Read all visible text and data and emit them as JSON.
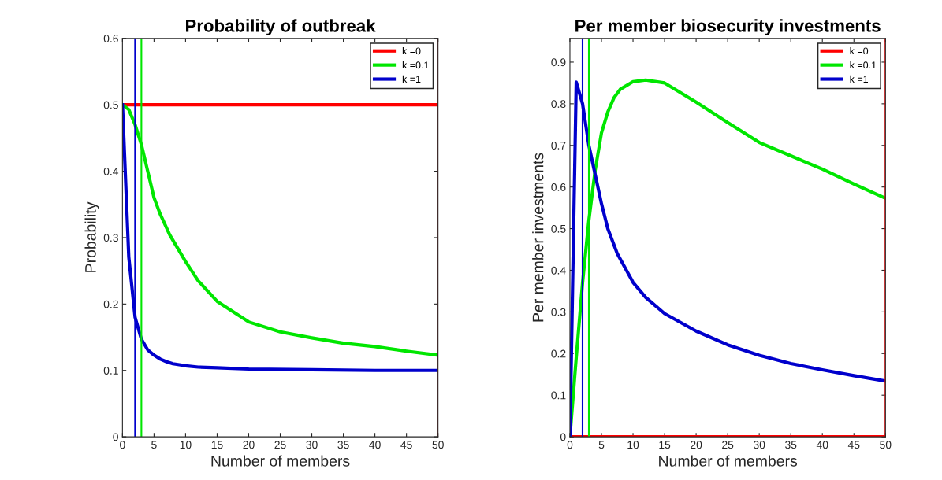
{
  "chart_data": [
    {
      "type": "line",
      "title": "Probability of outbreak",
      "xlabel": "Number of members",
      "ylabel": "Probability",
      "xlim": [
        0,
        50
      ],
      "xticks": [
        0,
        5,
        10,
        15,
        20,
        25,
        30,
        35,
        40,
        45,
        50
      ],
      "ylim": [
        0,
        0.6
      ],
      "yticks": [
        0,
        0.1,
        0.2,
        0.3,
        0.4,
        0.5,
        0.6
      ],
      "legend": "top right",
      "grid": false,
      "series": [
        {
          "name": "k =0",
          "color": "#ff0000",
          "x": [
            0,
            50
          ],
          "values": [
            0.5,
            0.5
          ]
        },
        {
          "name": "k =0.1",
          "color": "#00e600",
          "x": [
            0,
            1,
            2,
            3,
            4,
            5,
            6,
            7.5,
            10,
            12,
            15,
            20,
            25,
            30,
            35,
            40,
            45,
            50
          ],
          "values": [
            0.5,
            0.493,
            0.47,
            0.44,
            0.4,
            0.36,
            0.335,
            0.304,
            0.264,
            0.235,
            0.204,
            0.173,
            0.158,
            0.149,
            0.141,
            0.136,
            0.129,
            0.123
          ]
        },
        {
          "name": "k =1",
          "color": "#0000cc",
          "x": [
            0,
            1,
            2,
            3,
            4,
            5,
            6,
            7,
            8,
            10,
            12,
            15,
            20,
            30,
            40,
            50
          ],
          "values": [
            0.5,
            0.271,
            0.18,
            0.147,
            0.131,
            0.123,
            0.117,
            0.113,
            0.11,
            0.107,
            0.105,
            0.104,
            0.102,
            0.101,
            0.1,
            0.1
          ]
        }
      ],
      "ref_lines": [
        {
          "axis": "x",
          "value": 2,
          "color": "#0000cc"
        },
        {
          "axis": "x",
          "value": 3,
          "color": "#00e600"
        },
        {
          "axis": "x",
          "value": 50,
          "color": "#ff0000"
        }
      ]
    },
    {
      "type": "line",
      "title": "Per member biosecurity investments",
      "xlabel": "Number of members",
      "ylabel": "Per member investments",
      "xlim": [
        0,
        50
      ],
      "xticks": [
        0,
        5,
        10,
        15,
        20,
        25,
        30,
        35,
        40,
        45,
        50
      ],
      "ylim": [
        0,
        0.957
      ],
      "yticks": [
        0,
        0.1,
        0.2,
        0.3,
        0.4,
        0.5,
        0.6,
        0.7,
        0.8,
        0.9
      ],
      "legend": "top right",
      "grid": false,
      "series": [
        {
          "name": "k =0",
          "color": "#ff0000",
          "x": [
            0,
            50
          ],
          "values": [
            0,
            0
          ]
        },
        {
          "name": "k =0.1",
          "color": "#00e600",
          "x": [
            0,
            1,
            2,
            3,
            4,
            5,
            6,
            7,
            8,
            10,
            12,
            15,
            20,
            25,
            30,
            35,
            40,
            45,
            50
          ],
          "values": [
            0,
            0.19,
            0.37,
            0.52,
            0.64,
            0.73,
            0.78,
            0.815,
            0.835,
            0.853,
            0.857,
            0.85,
            0.804,
            0.755,
            0.707,
            0.675,
            0.643,
            0.607,
            0.573
          ]
        },
        {
          "name": "k =1",
          "color": "#0000cc",
          "x": [
            0,
            1,
            2,
            3,
            4,
            5,
            6,
            7.5,
            10,
            12,
            15,
            20,
            25,
            30,
            35,
            40,
            45,
            50
          ],
          "values": [
            0,
            0.852,
            0.8,
            0.7,
            0.63,
            0.56,
            0.5,
            0.44,
            0.371,
            0.335,
            0.296,
            0.254,
            0.221,
            0.196,
            0.176,
            0.161,
            0.147,
            0.134
          ]
        }
      ],
      "ref_lines": [
        {
          "axis": "x",
          "value": 2,
          "color": "#0000cc"
        },
        {
          "axis": "x",
          "value": 3,
          "color": "#00e600"
        },
        {
          "axis": "x",
          "value": 50,
          "color": "#ff0000"
        }
      ]
    }
  ]
}
